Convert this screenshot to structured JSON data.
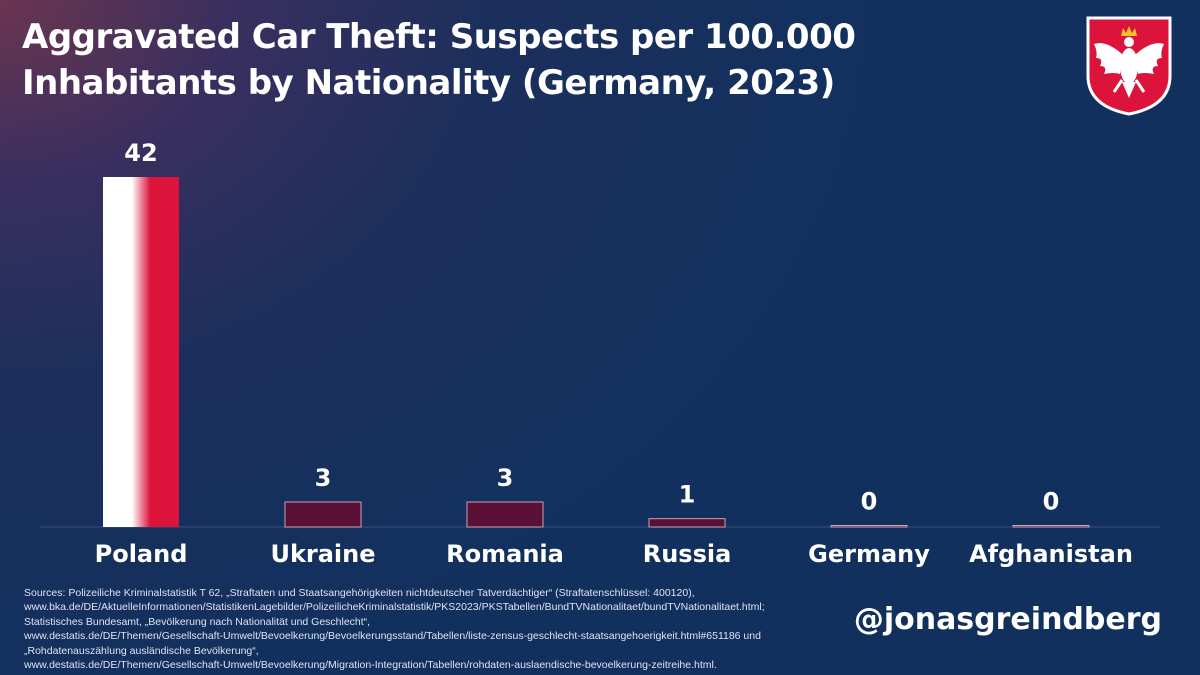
{
  "title": {
    "line1": "Aggravated Car Theft: Suspects per 100.000",
    "line2": "Inhabitants by Nationality (Germany, 2023)"
  },
  "emblem": {
    "icon": "polish-white-eagle-coat-of-arms-icon",
    "shield_color": "#dc143c"
  },
  "chart_data": {
    "type": "bar",
    "title": "Aggravated Car Theft: Suspects per 100.000 Inhabitants by Nationality (Germany, 2023)",
    "xlabel": "",
    "ylabel": "",
    "categories": [
      "Poland",
      "Ukraine",
      "Romania",
      "Russia",
      "Germany",
      "Afghanistan"
    ],
    "values": [
      42,
      3,
      3,
      1,
      0,
      0
    ],
    "data_labels": [
      "42",
      "3",
      "3",
      "1",
      "0",
      "0"
    ],
    "ylim": [
      0,
      42
    ],
    "grid": false,
    "colors": {
      "highlight_white": "#ffffff",
      "highlight_red": "#dc143c",
      "other_bars": "#5a0f35"
    }
  },
  "sources": [
    "Sources: Polizeiliche Kriminalstatistik T 62, „Straftaten und Staatsangehörigkeiten nichtdeutscher Tatverdächtiger“ (Straftatenschlüssel: 400120),",
    "www.bka.de/DE/AktuelleInformationen/StatistikenLagebilder/PolizeilicheKriminalstatistik/PKS2023/PKSTabellen/BundTVNationalitaet/bundTVNationalitaet.html;",
    "Statistisches Bundesamt, „Bevölkerung nach Nationalität und Geschlecht“,",
    "www.destatis.de/DE/Themen/Gesellschaft-Umwelt/Bevoelkerung/Bevoelkerungsstand/Tabellen/liste-zensus-geschlecht-staatsangehoerigkeit.html#651186 und",
    "„Rohdatenauszählung ausländische Bevölkerung“,",
    "www.destatis.de/DE/Themen/Gesellschaft-Umwelt/Bevoelkerung/Migration-Integration/Tabellen/rohdaten-auslaendische-bevoelkerung-zeitreihe.html."
  ],
  "handle": "@jonasgreindberg"
}
